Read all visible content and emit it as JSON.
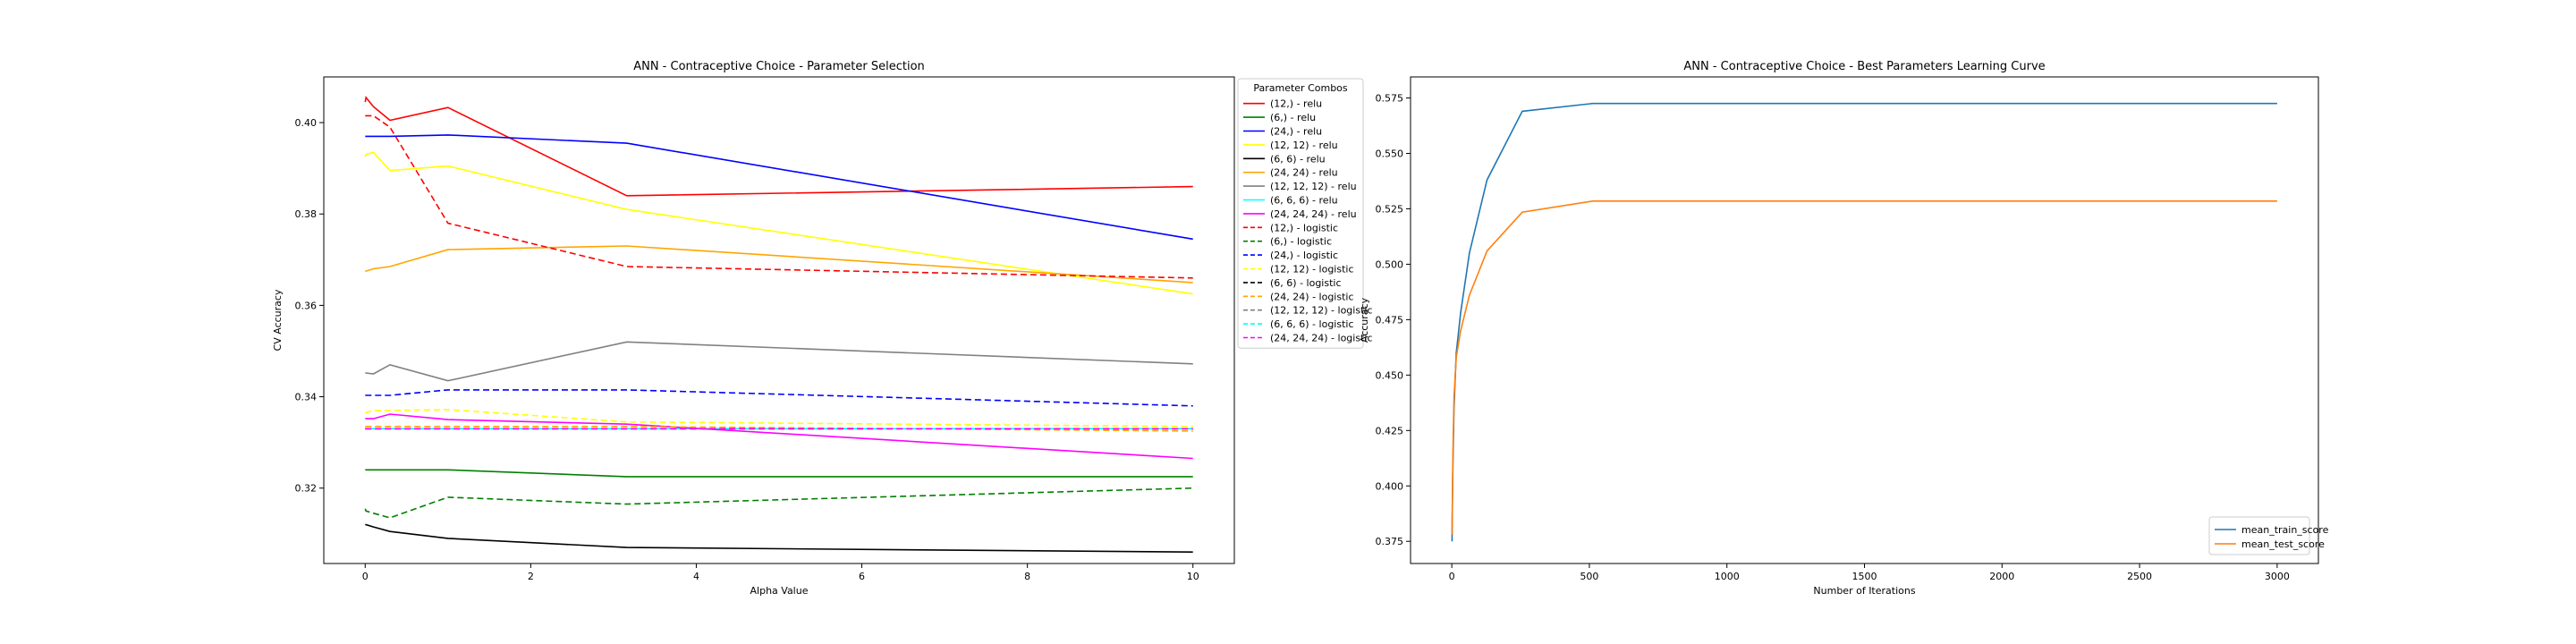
{
  "chart_data": [
    {
      "type": "line",
      "title": "ANN - Contraceptive Choice - Parameter Selection",
      "xlabel": "Alpha Value",
      "ylabel": "CV Accuracy",
      "xlim": [
        -0.5,
        10.5
      ],
      "ylim": [
        0.3035,
        0.41
      ],
      "xticks": [
        0,
        2,
        4,
        6,
        8,
        10
      ],
      "xtick_labels": [
        "0",
        "2",
        "4",
        "6",
        "8",
        "10"
      ],
      "yticks": [
        0.32,
        0.34,
        0.36,
        0.38,
        0.4
      ],
      "ytick_labels": [
        "0.32",
        "0.34",
        "0.36",
        "0.38",
        "0.40"
      ],
      "grid": false,
      "legend_title": "Parameter Combos",
      "legend_position": "outside right",
      "x": [
        0,
        0.01,
        0.1,
        0.3,
        1,
        3.16,
        10
      ],
      "series": [
        {
          "name": "(12,) - relu",
          "color": "#ff0000",
          "dash": "solid",
          "values": [
            0.4045,
            0.4055,
            0.4035,
            0.4005,
            0.4033,
            0.384,
            0.386
          ]
        },
        {
          "name": "(6,) - relu",
          "color": "#008000",
          "dash": "solid",
          "values": [
            0.324,
            0.324,
            0.324,
            0.324,
            0.324,
            0.3225,
            0.3225
          ]
        },
        {
          "name": "(24,) - relu",
          "color": "#0000ff",
          "dash": "solid",
          "values": [
            0.397,
            0.397,
            0.397,
            0.397,
            0.3973,
            0.3955,
            0.3745
          ]
        },
        {
          "name": "(12, 12) - relu",
          "color": "#ffff00",
          "dash": "solid",
          "values": [
            0.3925,
            0.393,
            0.3935,
            0.3895,
            0.3905,
            0.381,
            0.3625
          ]
        },
        {
          "name": "(6, 6) - relu",
          "color": "#000000",
          "dash": "solid",
          "values": [
            0.312,
            0.312,
            0.3115,
            0.3105,
            0.309,
            0.307,
            0.306
          ]
        },
        {
          "name": "(24, 24) - relu",
          "color": "#ffa500",
          "dash": "solid",
          "values": [
            0.3675,
            0.3675,
            0.368,
            0.3685,
            0.3722,
            0.373,
            0.365
          ]
        },
        {
          "name": "(12, 12, 12) - relu",
          "color": "#808080",
          "dash": "solid",
          "values": [
            0.3452,
            0.3452,
            0.345,
            0.347,
            0.3435,
            0.352,
            0.3472
          ]
        },
        {
          "name": "(6, 6, 6) - relu",
          "color": "#00ffff",
          "dash": "solid",
          "values": [
            0.333,
            0.333,
            0.333,
            0.333,
            0.333,
            0.333,
            0.333
          ]
        },
        {
          "name": "(24, 24, 24) - relu",
          "color": "#ff00ff",
          "dash": "solid",
          "values": [
            0.3352,
            0.3352,
            0.3352,
            0.3362,
            0.335,
            0.334,
            0.3265
          ]
        },
        {
          "name": "(12,) - logistic",
          "color": "#ff0000",
          "dash": "dashed",
          "values": [
            0.4015,
            0.4015,
            0.4015,
            0.399,
            0.378,
            0.3685,
            0.366
          ]
        },
        {
          "name": "(6,) - logistic",
          "color": "#008000",
          "dash": "dashed",
          "values": [
            0.3155,
            0.315,
            0.3145,
            0.3135,
            0.318,
            0.3165,
            0.32
          ]
        },
        {
          "name": "(24,) - logistic",
          "color": "#0000ff",
          "dash": "dashed",
          "values": [
            0.3403,
            0.3403,
            0.3403,
            0.3403,
            0.3415,
            0.3415,
            0.338
          ]
        },
        {
          "name": "(12, 12) - logistic",
          "color": "#ffff00",
          "dash": "dashed",
          "values": [
            0.3365,
            0.3365,
            0.337,
            0.337,
            0.3372,
            0.3345,
            0.3335
          ]
        },
        {
          "name": "(6, 6) - logistic",
          "color": "#000000",
          "dash": "dashed",
          "values": [
            0.333,
            0.333,
            0.333,
            0.333,
            0.333,
            0.333,
            0.333
          ]
        },
        {
          "name": "(24, 24) - logistic",
          "color": "#ffa500",
          "dash": "dashed",
          "values": [
            0.3335,
            0.3335,
            0.3335,
            0.3335,
            0.3335,
            0.3335,
            0.3325
          ]
        },
        {
          "name": "(12, 12, 12) - logistic",
          "color": "#808080",
          "dash": "dashed",
          "values": [
            0.333,
            0.333,
            0.333,
            0.333,
            0.333,
            0.333,
            0.333
          ]
        },
        {
          "name": "(6, 6, 6) - logistic",
          "color": "#00ffff",
          "dash": "dashed",
          "values": [
            0.333,
            0.333,
            0.333,
            0.333,
            0.333,
            0.333,
            0.333
          ]
        },
        {
          "name": "(24, 24, 24) - logistic",
          "color": "#ff00ff",
          "dash": "dashed",
          "values": [
            0.333,
            0.333,
            0.333,
            0.333,
            0.333,
            0.333,
            0.333
          ]
        }
      ]
    },
    {
      "type": "line",
      "title": "ANN - Contraceptive Choice - Best Parameters Learning Curve",
      "xlabel": "Number of Iterations",
      "ylabel": "Accuracy",
      "xlim": [
        -150,
        3150
      ],
      "ylim": [
        0.365,
        0.5845
      ],
      "xticks": [
        0,
        500,
        1000,
        1500,
        2000,
        2500,
        3000
      ],
      "xtick_labels": [
        "0",
        "500",
        "1000",
        "1500",
        "2000",
        "2500",
        "3000"
      ],
      "yticks": [
        0.375,
        0.4,
        0.425,
        0.45,
        0.475,
        0.5,
        0.525,
        0.55,
        0.575
      ],
      "ytick_labels": [
        "0.375",
        "0.400",
        "0.425",
        "0.450",
        "0.475",
        "0.500",
        "0.525",
        "0.550",
        "0.575"
      ],
      "grid": false,
      "legend_position": "lower right",
      "x": [
        1,
        2,
        4,
        8,
        16,
        32,
        64,
        128,
        256,
        512,
        1024,
        2048,
        3000
      ],
      "series": [
        {
          "name": "mean_train_score",
          "color": "#1f77b4",
          "dash": "solid",
          "values": [
            0.375,
            0.392,
            0.41,
            0.435,
            0.46,
            0.478,
            0.505,
            0.538,
            0.569,
            0.5725,
            0.5725,
            0.5725,
            0.5725
          ]
        },
        {
          "name": "mean_test_score",
          "color": "#ff7f0e",
          "dash": "solid",
          "values": [
            0.378,
            0.395,
            0.415,
            0.44,
            0.458,
            0.47,
            0.486,
            0.506,
            0.5235,
            0.5285,
            0.5285,
            0.5285,
            0.5285
          ]
        }
      ]
    }
  ]
}
